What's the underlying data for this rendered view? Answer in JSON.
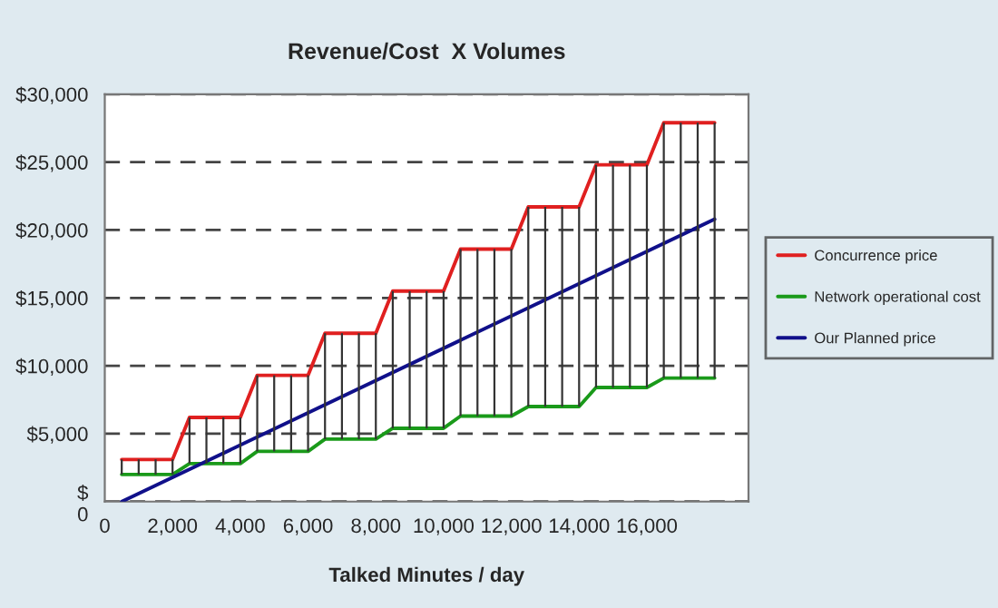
{
  "chart_data": {
    "type": "line",
    "title": "Revenue/Cost  X Volumes",
    "xlabel": "Talked Minutes / day",
    "x": [
      500,
      1000,
      1500,
      2000,
      2500,
      3000,
      3500,
      4000,
      4500,
      5000,
      5500,
      6000,
      6500,
      7000,
      7500,
      8000,
      8500,
      9000,
      9500,
      10000,
      10500,
      11000,
      11500,
      12000,
      12500,
      13000,
      13500,
      14000,
      14500,
      15000,
      15500,
      16000,
      16500,
      17000,
      17500,
      18000
    ],
    "series": [
      {
        "name": "Concurrence price",
        "color": "#e02020",
        "values": [
          3100,
          3100,
          3100,
          3100,
          6200,
          6200,
          6200,
          6200,
          9300,
          9300,
          9300,
          9300,
          12400,
          12400,
          12400,
          12400,
          15500,
          15500,
          15500,
          15500,
          18600,
          18600,
          18600,
          18600,
          21700,
          21700,
          21700,
          21700,
          24800,
          24800,
          24800,
          24800,
          27900,
          27900,
          27900,
          27900
        ]
      },
      {
        "name": "Network operational cost",
        "color": "#1a9a1a",
        "values": [
          2000,
          2000,
          2000,
          2000,
          2800,
          2800,
          2800,
          2800,
          3700,
          3700,
          3700,
          3700,
          4600,
          4600,
          4600,
          4600,
          5400,
          5400,
          5400,
          5400,
          6300,
          6300,
          6300,
          6300,
          7000,
          7000,
          7000,
          7000,
          8400,
          8400,
          8400,
          8400,
          9100,
          9100,
          9100,
          9100
        ],
        "errors": [
          [
            2000,
            3100
          ],
          [
            2000,
            3100
          ],
          [
            2000,
            3100
          ],
          [
            2000,
            3100
          ],
          [
            2800,
            6200
          ],
          [
            2800,
            6200
          ],
          [
            2800,
            6200
          ],
          [
            2800,
            6200
          ],
          [
            3700,
            9300
          ],
          [
            3700,
            9300
          ],
          [
            3700,
            9300
          ],
          [
            3700,
            9300
          ],
          [
            4600,
            12400
          ],
          [
            4600,
            12400
          ],
          [
            4600,
            12400
          ],
          [
            4600,
            12400
          ],
          [
            5400,
            15500
          ],
          [
            5400,
            15500
          ],
          [
            5400,
            15500
          ],
          [
            5400,
            15500
          ],
          [
            6300,
            18600
          ],
          [
            6300,
            18600
          ],
          [
            6300,
            18600
          ],
          [
            6300,
            18600
          ],
          [
            7000,
            21700
          ],
          [
            7000,
            21700
          ],
          [
            7000,
            21700
          ],
          [
            7000,
            21700
          ],
          [
            8400,
            24800
          ],
          [
            8400,
            24800
          ],
          [
            8400,
            24800
          ],
          [
            8400,
            24800
          ],
          [
            9100,
            27900
          ],
          [
            9100,
            27900
          ],
          [
            9100,
            27900
          ],
          [
            9100,
            27900
          ]
        ]
      },
      {
        "name": "Our Planned price",
        "color": "#10108a",
        "x": [
          500,
          18000
        ],
        "values": [
          0,
          20800
        ]
      }
    ],
    "xlim": [
      0,
      19000
    ],
    "xticks": [
      0,
      {
        "value": 2000,
        "label": "2,000"
      },
      {
        "value": 4000,
        "label": "4,000"
      },
      {
        "value": 6000,
        "label": "6,000"
      },
      {
        "value": 8000,
        "label": "8,000"
      },
      {
        "value": 10000,
        "label": "10,000"
      },
      {
        "value": 12000,
        "label": "12,000"
      },
      {
        "value": 14000,
        "label": "14,000"
      },
      {
        "value": 16000,
        "label": "16,000"
      }
    ],
    "ylim": [
      0,
      30000
    ],
    "yticks": [
      {
        "value": 0,
        "label": "$\n0"
      },
      {
        "value": 5000,
        "label": "$5,000"
      },
      {
        "value": 10000,
        "label": "$10,000"
      },
      {
        "value": 15000,
        "label": "$15,000"
      },
      {
        "value": 20000,
        "label": "$20,000"
      },
      {
        "value": 25000,
        "label": "$25,000"
      },
      {
        "value": 30000,
        "label": "$30,000"
      }
    ],
    "grid": "y",
    "legend": "right",
    "marker": "none",
    "line_style": "solid"
  }
}
